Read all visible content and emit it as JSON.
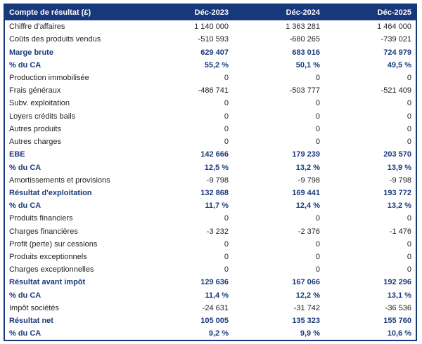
{
  "chart_data": {
    "type": "table",
    "title": "Compte de résultat (£)",
    "columns": [
      "Déc-2023",
      "Déc-2024",
      "Déc-2025"
    ],
    "rows": [
      {
        "label": "Chiffre d'affaires",
        "values": [
          "1 140 000",
          "1 363 281",
          "1 464 000"
        ],
        "bold": false
      },
      {
        "label": "Coûts des produits vendus",
        "values": [
          "-510 593",
          "-680 265",
          "-739 021"
        ],
        "bold": false
      },
      {
        "label": "Marge brute",
        "values": [
          "629 407",
          "683 016",
          "724 979"
        ],
        "bold": true
      },
      {
        "label": "% du CA",
        "values": [
          "55,2 %",
          "50,1 %",
          "49,5 %"
        ],
        "bold": true
      },
      {
        "label": "Production immobilisée",
        "values": [
          "0",
          "0",
          "0"
        ],
        "bold": false
      },
      {
        "label": "Frais généraux",
        "values": [
          "-486 741",
          "-503 777",
          "-521 409"
        ],
        "bold": false
      },
      {
        "label": "Subv. exploitation",
        "values": [
          "0",
          "0",
          "0"
        ],
        "bold": false
      },
      {
        "label": "Loyers crédits bails",
        "values": [
          "0",
          "0",
          "0"
        ],
        "bold": false
      },
      {
        "label": "Autres produits",
        "values": [
          "0",
          "0",
          "0"
        ],
        "bold": false
      },
      {
        "label": "Autres charges",
        "values": [
          "0",
          "0",
          "0"
        ],
        "bold": false
      },
      {
        "label": "EBE",
        "values": [
          "142 666",
          "179 239",
          "203 570"
        ],
        "bold": true
      },
      {
        "label": "% du CA",
        "values": [
          "12,5 %",
          "13,2 %",
          "13,9 %"
        ],
        "bold": true
      },
      {
        "label": "Amortissements et provisions",
        "values": [
          "-9 798",
          "-9 798",
          "-9 798"
        ],
        "bold": false
      },
      {
        "label": "Résultat d'exploitation",
        "values": [
          "132 868",
          "169 441",
          "193 772"
        ],
        "bold": true
      },
      {
        "label": "% du CA",
        "values": [
          "11,7 %",
          "12,4 %",
          "13,2 %"
        ],
        "bold": true
      },
      {
        "label": "Produits financiers",
        "values": [
          "0",
          "0",
          "0"
        ],
        "bold": false
      },
      {
        "label": "Charges financières",
        "values": [
          "-3 232",
          "-2 376",
          "-1 476"
        ],
        "bold": false
      },
      {
        "label": "Profit (perte) sur cessions",
        "values": [
          "0",
          "0",
          "0"
        ],
        "bold": false
      },
      {
        "label": "Produits exceptionnels",
        "values": [
          "0",
          "0",
          "0"
        ],
        "bold": false
      },
      {
        "label": "Charges exceptionnelles",
        "values": [
          "0",
          "0",
          "0"
        ],
        "bold": false
      },
      {
        "label": "Résultat avant impôt",
        "values": [
          "129 636",
          "167 066",
          "192 296"
        ],
        "bold": true
      },
      {
        "label": "% du CA",
        "values": [
          "11,4 %",
          "12,2 %",
          "13,1 %"
        ],
        "bold": true
      },
      {
        "label": "Impôt sociétés",
        "values": [
          "-24 631",
          "-31 742",
          "-36 536"
        ],
        "bold": false
      },
      {
        "label": "Résultat net",
        "values": [
          "105 005",
          "135 323",
          "155 760"
        ],
        "bold": true
      },
      {
        "label": "% du CA",
        "values": [
          "9,2 %",
          "9,9 %",
          "10,6 %"
        ],
        "bold": true
      }
    ],
    "layout": {
      "gridlines": false,
      "value_alignment": "right"
    }
  },
  "colors": {
    "header_bg": "#17397c",
    "header_text": "#ffffff",
    "accent_text": "#1a3a7c",
    "body_text": "#1f1f1f",
    "border": "#17397c",
    "row_bg": "#ffffff",
    "page_bg": "#ffffff"
  }
}
